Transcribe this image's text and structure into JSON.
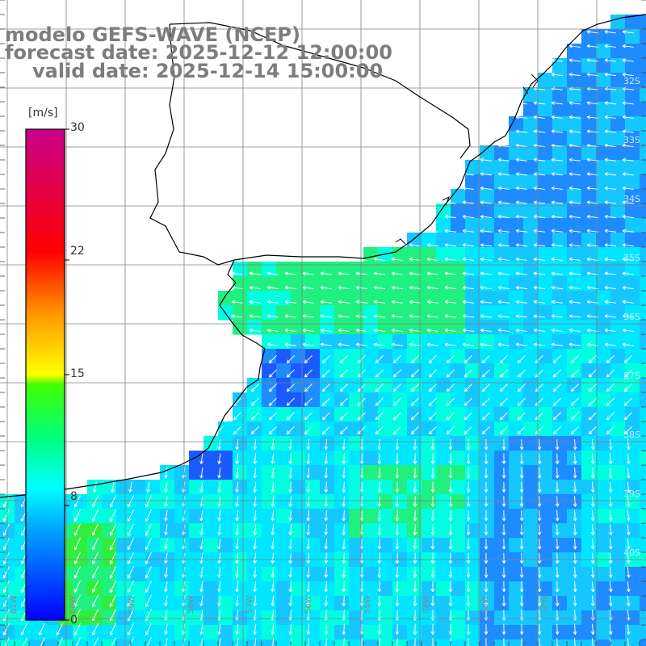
{
  "title": {
    "line1": "modelo GEFS-WAVE (NCEP)",
    "line2": "forecast date: 2025-12-12 12:00:00",
    "line3": "valid date: 2025-12-14 15:00:00"
  },
  "colorbar": {
    "unit": "[m/s]",
    "min": 0,
    "max": 30,
    "ticks": [
      "30",
      "22",
      "15",
      "8",
      "0"
    ],
    "stops": [
      "#0000ff",
      "#00c8ff",
      "#00ffff",
      "#00ff00",
      "#ffff00",
      "#ff8000",
      "#ff0000",
      "#c00080"
    ]
  },
  "map": {
    "background_color": "#ffffff",
    "coast_color": "#000000",
    "grid_color": "#808080",
    "lon_labels": [
      "61W",
      "60W",
      "59W",
      "58W",
      "57W",
      "56W",
      "55W",
      "54W",
      "53W",
      "52W"
    ],
    "lat_labels": [
      "32S",
      "33S",
      "34S",
      "35S",
      "36S",
      "37S",
      "38S",
      "39S",
      "40S"
    ],
    "palette": {
      "deep_blue": "#1a5aff",
      "blue": "#1e8cff",
      "light_blue": "#14c8ff",
      "cyan": "#00e6ff",
      "aqua": "#00ffe0",
      "green": "#20f080",
      "bright_green": "#30ee40"
    },
    "arrow_color": "#ffffff"
  }
}
